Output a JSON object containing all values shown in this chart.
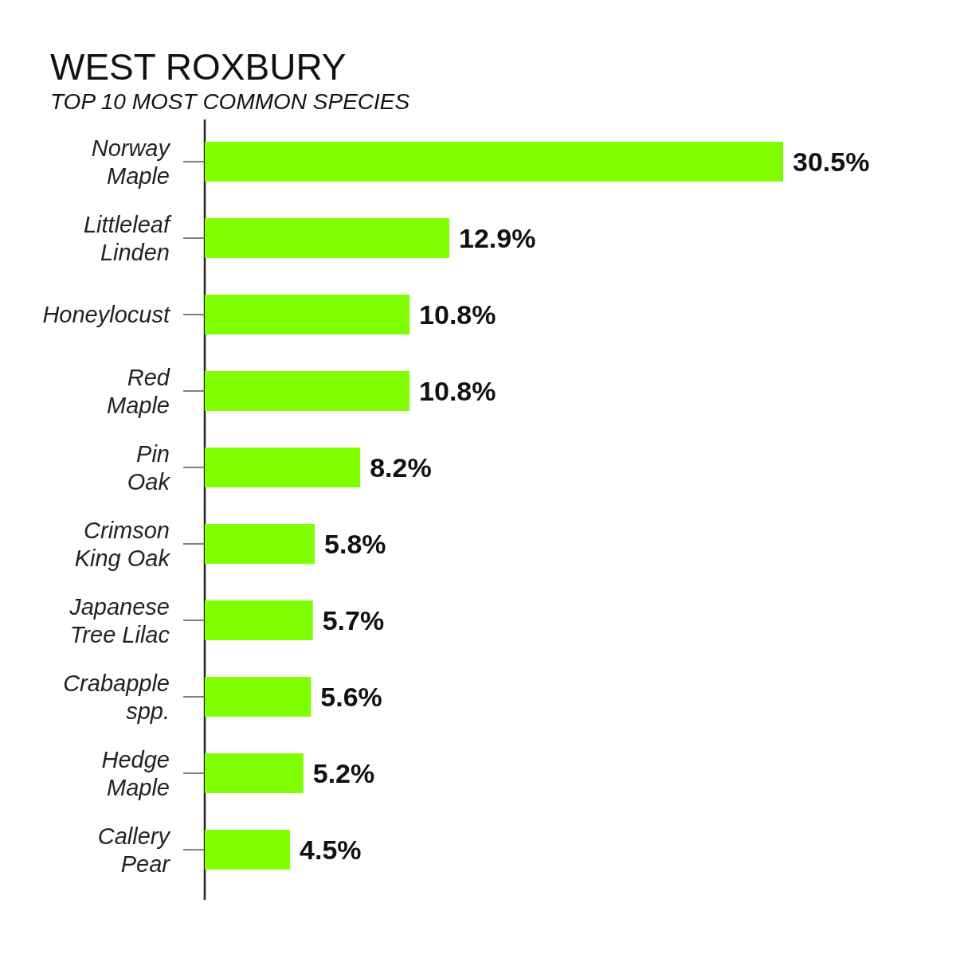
{
  "chart_data": {
    "type": "bar",
    "orientation": "horizontal",
    "title": "WEST ROXBURY",
    "subtitle": "TOP 10 MOST COMMON SPECIES",
    "categories": [
      "Norway Maple",
      "Littleleaf Linden",
      "Honeylocust",
      "Red Maple",
      "Pin Oak",
      "Crimson King Oak",
      "Japanese Tree Lilac",
      "Crabapple spp.",
      "Hedge Maple",
      "Callery Pear"
    ],
    "values": [
      30.5,
      12.9,
      10.8,
      10.8,
      8.2,
      5.8,
      5.7,
      5.6,
      5.2,
      4.5
    ],
    "value_labels": [
      "30.5%",
      "12.9%",
      "10.8%",
      "10.8%",
      "8.2%",
      "5.8%",
      "5.7%",
      "5.6%",
      "5.2%",
      "4.5%"
    ],
    "color": "#80ff00"
  }
}
